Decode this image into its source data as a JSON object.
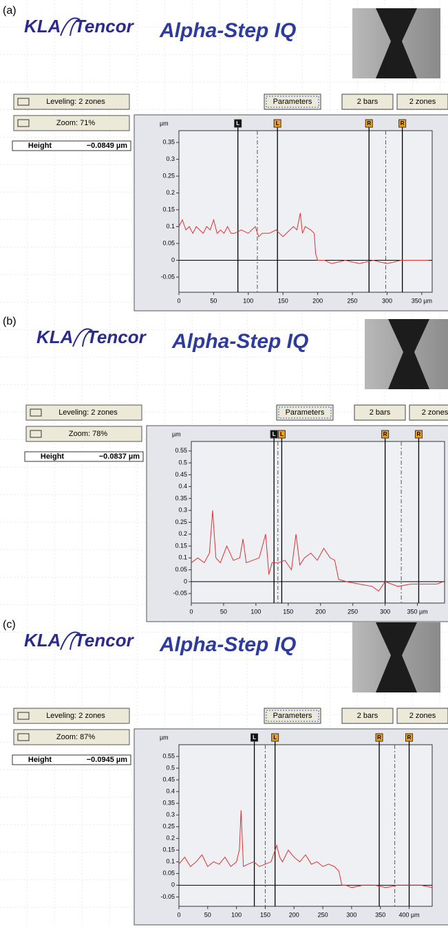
{
  "panels": [
    {
      "label": "(a)",
      "logo": {
        "left": "KLA",
        "right": "Tencor"
      },
      "app_title": "Alpha-Step IQ",
      "controls": {
        "leveling": "Leveling: 2 zones",
        "zoom": "Zoom: 71%",
        "height_label": "Height",
        "height_value": "−0.0849 µm"
      },
      "buttons": [
        "Parameters",
        "2 bars",
        "2 zones"
      ],
      "chart_data": {
        "type": "line",
        "y_unit": "µm",
        "color": "#e03030",
        "xlim": [
          0,
          365
        ],
        "ylim": [
          -0.095,
          0.385
        ],
        "xticks": [
          0,
          50,
          100,
          150,
          200,
          250,
          300,
          {
            "value": 350,
            "label": "350 µm"
          }
        ],
        "yticks": [
          -0.05,
          0,
          0.05,
          0.1,
          0.15,
          0.2,
          0.25,
          0.3,
          0.35
        ],
        "cursors": [
          {
            "label": "L",
            "x": 85
          },
          {
            "label": "L",
            "x": 142
          },
          {
            "label": "R",
            "x": 274
          },
          {
            "label": "R",
            "x": 322
          }
        ],
        "dashed_x": [
          113,
          298
        ],
        "x": [
          0,
          5,
          10,
          15,
          20,
          25,
          30,
          35,
          40,
          45,
          50,
          55,
          60,
          65,
          70,
          75,
          80,
          90,
          100,
          110,
          115,
          120,
          130,
          140,
          150,
          160,
          165,
          170,
          175,
          178,
          182,
          190,
          195,
          197,
          200,
          210,
          220,
          240,
          260,
          280,
          300,
          320,
          340,
          360
        ],
        "values": [
          0.1,
          0.12,
          0.09,
          0.1,
          0.08,
          0.1,
          0.09,
          0.08,
          0.1,
          0.09,
          0.12,
          0.08,
          0.09,
          0.08,
          0.1,
          0.08,
          0.08,
          0.09,
          0.08,
          0.1,
          0.07,
          0.08,
          0.08,
          0.09,
          0.07,
          0.09,
          0.1,
          0.09,
          0.14,
          0.08,
          0.1,
          0.09,
          0.08,
          0.02,
          0,
          0,
          -0.01,
          0,
          -0.01,
          0,
          -0.01,
          0,
          0,
          0
        ]
      }
    },
    {
      "label": "(b)",
      "logo": {
        "left": "KLA",
        "right": "Tencor"
      },
      "app_title": "Alpha-Step IQ",
      "controls": {
        "leveling": "Leveling: 2 zones",
        "zoom": "Zoom: 78%",
        "height_label": "Height",
        "height_value": "−0.0837 µm"
      },
      "buttons": [
        "Parameters",
        "2 bars",
        "2 zones"
      ],
      "chart_data": {
        "type": "line",
        "y_unit": "µm",
        "color": "#e03030",
        "xlim": [
          0,
          392
        ],
        "ylim": [
          -0.09,
          0.59
        ],
        "xticks": [
          0,
          50,
          100,
          150,
          200,
          250,
          300,
          {
            "value": 350,
            "label": "350 µm"
          }
        ],
        "yticks": [
          -0.05,
          0,
          0.05,
          0.1,
          0.15,
          0.2,
          0.25,
          0.3,
          0.35,
          0.4,
          0.45,
          0.5,
          0.55
        ],
        "cursors": [
          {
            "label": "L",
            "x": 128
          },
          {
            "label": "L",
            "x": 140
          },
          {
            "label": "R",
            "x": 300
          },
          {
            "label": "R",
            "x": 352
          }
        ],
        "dashed_x": [
          134,
          325
        ],
        "x": [
          0,
          10,
          20,
          28,
          33,
          38,
          45,
          55,
          65,
          75,
          80,
          85,
          95,
          105,
          115,
          120,
          125,
          135,
          145,
          155,
          162,
          168,
          175,
          185,
          195,
          205,
          215,
          222,
          228,
          240,
          260,
          280,
          290,
          300,
          320,
          340,
          360,
          380,
          390
        ],
        "values": [
          0.08,
          0.1,
          0.08,
          0.12,
          0.3,
          0.1,
          0.08,
          0.15,
          0.09,
          0.1,
          0.18,
          0.08,
          0.09,
          0.1,
          0.2,
          0.03,
          0.08,
          0.08,
          0.09,
          0.05,
          0.2,
          0.07,
          0.1,
          0.12,
          0.09,
          0.14,
          0.1,
          0.09,
          0.01,
          0,
          -0.01,
          -0.02,
          -0.04,
          0,
          -0.02,
          -0.01,
          -0.01,
          -0.01,
          0
        ]
      }
    },
    {
      "label": "(c)",
      "logo": {
        "left": "KLA",
        "right": "Tencor"
      },
      "app_title": "Alpha-Step IQ",
      "controls": {
        "leveling": "Leveling: 2 zones",
        "zoom": "Zoom: 87%",
        "height_label": "Height",
        "height_value": "−0.0945 µm"
      },
      "buttons": [
        "Parameters",
        "2 bars",
        "2 zones"
      ],
      "chart_data": {
        "type": "line",
        "y_unit": "µm",
        "color": "#e03030",
        "xlim": [
          0,
          440
        ],
        "ylim": [
          -0.09,
          0.6
        ],
        "xticks": [
          0,
          50,
          100,
          150,
          200,
          250,
          300,
          350,
          {
            "value": 400,
            "label": "400 µm"
          }
        ],
        "yticks": [
          -0.05,
          0,
          0.05,
          0.1,
          0.15,
          0.2,
          0.25,
          0.3,
          0.35,
          0.4,
          0.45,
          0.5,
          0.55
        ],
        "cursors": [
          {
            "label": "L",
            "x": 131
          },
          {
            "label": "L",
            "x": 167
          },
          {
            "label": "R",
            "x": 348
          },
          {
            "label": "R",
            "x": 400
          }
        ],
        "dashed_x": [
          150,
          375
        ],
        "x": [
          0,
          10,
          20,
          30,
          40,
          50,
          60,
          70,
          80,
          90,
          100,
          105,
          108,
          112,
          120,
          130,
          140,
          150,
          160,
          170,
          175,
          180,
          190,
          200,
          210,
          220,
          230,
          240,
          250,
          260,
          270,
          278,
          283,
          290,
          300,
          320,
          340,
          360,
          380,
          400,
          420,
          440
        ],
        "values": [
          0.09,
          0.12,
          0.08,
          0.1,
          0.13,
          0.08,
          0.1,
          0.09,
          0.12,
          0.08,
          0.1,
          0.15,
          0.32,
          0.08,
          0.09,
          0.1,
          0.08,
          0.09,
          0.1,
          0.17,
          0.12,
          0.1,
          0.15,
          0.12,
          0.1,
          0.13,
          0.09,
          0.1,
          0.08,
          0.09,
          0.08,
          0.06,
          0,
          0,
          -0.01,
          0,
          0,
          -0.01,
          0,
          0,
          0,
          -0.01
        ]
      }
    }
  ]
}
